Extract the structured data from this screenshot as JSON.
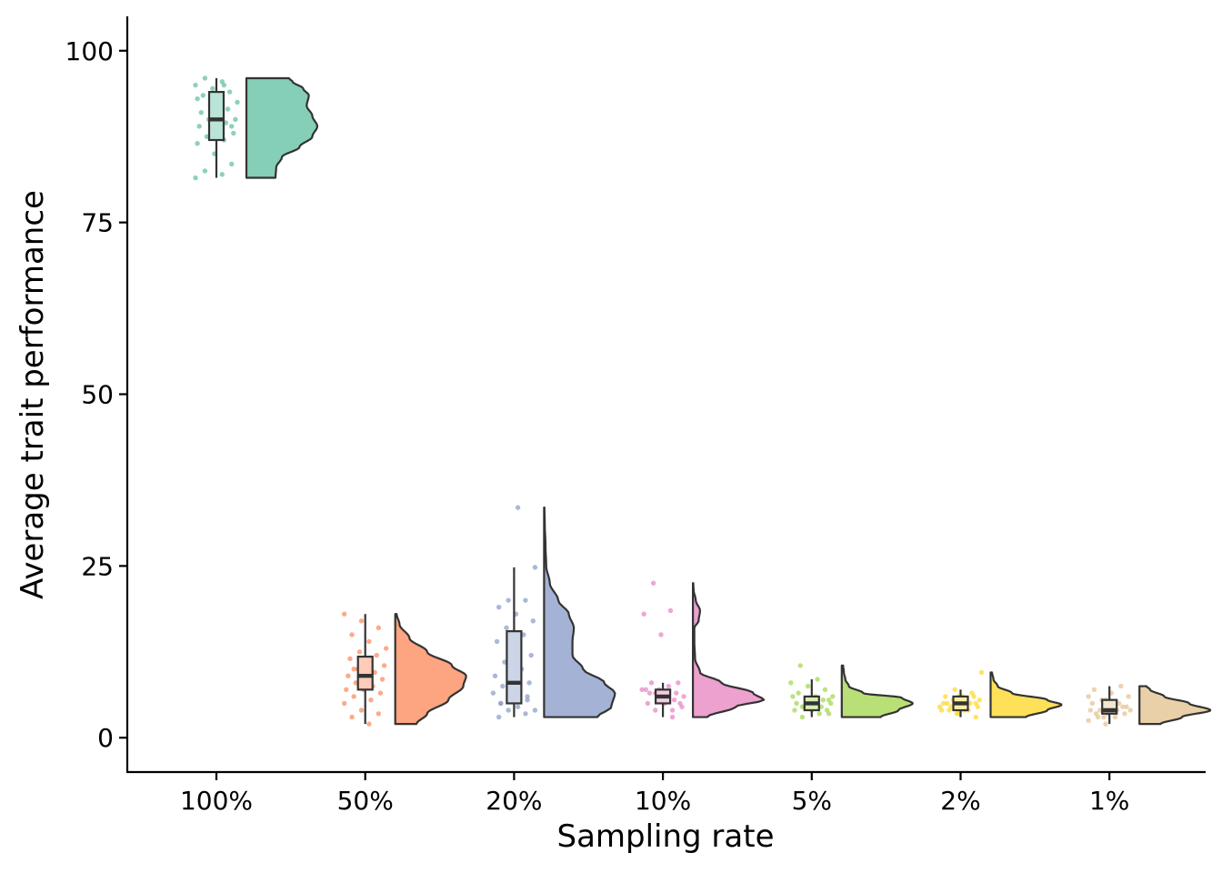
{
  "chart_data": {
    "type": "raincloud",
    "title": "",
    "xlabel": "Sampling rate",
    "ylabel": "Average trait performance",
    "ylim": [
      -5,
      105
    ],
    "y_ticks": [
      0,
      25,
      50,
      75,
      100
    ],
    "y_tick_labels": [
      "0",
      "25",
      "50",
      "75",
      "100"
    ],
    "grid": false,
    "legend": "none",
    "categories": [
      "100%",
      "50%",
      "20%",
      "10%",
      "5%",
      "2%",
      "1%"
    ],
    "colors": [
      "#66c2a5",
      "#fc8d62",
      "#8da0cb",
      "#e78ac3",
      "#a6d854",
      "#ffd92f",
      "#e5c494"
    ],
    "box_stats": [
      {
        "min": 81.5,
        "q1": 87.0,
        "median": 90.0,
        "q3": 94.0,
        "max": 96.0
      },
      {
        "min": 2.0,
        "q1": 7.0,
        "median": 9.0,
        "q3": 11.8,
        "max": 18.0
      },
      {
        "min": 3.0,
        "q1": 5.0,
        "median": 8.0,
        "q3": 15.5,
        "max": 24.8
      },
      {
        "min": 3.0,
        "q1": 5.0,
        "median": 6.0,
        "q3": 7.0,
        "max": 8.0
      },
      {
        "min": 3.0,
        "q1": 4.0,
        "median": 5.0,
        "q3": 6.0,
        "max": 8.5
      },
      {
        "min": 3.0,
        "q1": 4.0,
        "median": 5.0,
        "q3": 6.0,
        "max": 7.0
      },
      {
        "min": 2.0,
        "q1": 3.5,
        "median": 4.0,
        "q3": 5.5,
        "max": 7.5
      }
    ],
    "density": [
      {
        "range": [
          81.5,
          96.0
        ],
        "profile": [
          [
            81.5,
            0.41
          ],
          [
            83.0,
            0.42
          ],
          [
            84.5,
            0.5
          ],
          [
            86.0,
            0.75
          ],
          [
            87.5,
            0.93
          ],
          [
            89.0,
            1.0
          ],
          [
            90.5,
            0.93
          ],
          [
            92.0,
            0.85
          ],
          [
            93.5,
            0.88
          ],
          [
            94.5,
            0.8
          ],
          [
            95.5,
            0.65
          ],
          [
            96.0,
            0.6
          ]
        ]
      },
      {
        "range": [
          2.0,
          18.0
        ],
        "profile": [
          [
            2.0,
            0.3
          ],
          [
            3.5,
            0.45
          ],
          [
            5.5,
            0.75
          ],
          [
            7.5,
            0.96
          ],
          [
            9.0,
            1.0
          ],
          [
            10.5,
            0.8
          ],
          [
            12.5,
            0.45
          ],
          [
            14.5,
            0.2
          ],
          [
            16.5,
            0.06
          ],
          [
            18.0,
            0.02
          ]
        ]
      },
      {
        "range": [
          3.0,
          33.5
        ],
        "profile": [
          [
            3.0,
            0.75
          ],
          [
            4.5,
            0.95
          ],
          [
            6.5,
            1.0
          ],
          [
            8.0,
            0.85
          ],
          [
            10.0,
            0.55
          ],
          [
            12.0,
            0.4
          ],
          [
            14.0,
            0.4
          ],
          [
            16.0,
            0.42
          ],
          [
            18.0,
            0.35
          ],
          [
            20.0,
            0.2
          ],
          [
            22.5,
            0.08
          ],
          [
            25.0,
            0.03
          ],
          [
            28.0,
            0.02
          ],
          [
            31.0,
            0.01
          ],
          [
            33.5,
            0.005
          ]
        ]
      },
      {
        "range": [
          3.0,
          22.5
        ],
        "profile": [
          [
            3.0,
            0.2
          ],
          [
            4.5,
            0.6
          ],
          [
            5.5,
            1.0
          ],
          [
            6.5,
            0.85
          ],
          [
            8.0,
            0.4
          ],
          [
            9.5,
            0.1
          ],
          [
            11.5,
            0.03
          ],
          [
            14.0,
            0.02
          ],
          [
            16.0,
            0.02
          ],
          [
            17.0,
            0.08
          ],
          [
            18.5,
            0.1
          ],
          [
            20.0,
            0.04
          ],
          [
            21.5,
            0.01
          ],
          [
            22.5,
            0.005
          ]
        ]
      },
      {
        "range": [
          3.0,
          10.5
        ],
        "profile": [
          [
            3.0,
            0.55
          ],
          [
            4.0,
            0.8
          ],
          [
            5.0,
            1.0
          ],
          [
            5.8,
            0.85
          ],
          [
            6.5,
            0.3
          ],
          [
            7.5,
            0.1
          ],
          [
            8.5,
            0.05
          ],
          [
            9.5,
            0.03
          ],
          [
            10.5,
            0.02
          ]
        ]
      },
      {
        "range": [
          3.0,
          9.5
        ],
        "profile": [
          [
            3.0,
            0.5
          ],
          [
            4.0,
            0.8
          ],
          [
            4.8,
            1.0
          ],
          [
            5.5,
            0.8
          ],
          [
            6.5,
            0.3
          ],
          [
            7.5,
            0.1
          ],
          [
            8.5,
            0.04
          ],
          [
            9.5,
            0.02
          ]
        ]
      },
      {
        "range": [
          2.0,
          7.5
        ],
        "profile": [
          [
            2.0,
            0.3
          ],
          [
            3.0,
            0.6
          ],
          [
            4.0,
            1.0
          ],
          [
            5.0,
            0.7
          ],
          [
            6.0,
            0.35
          ],
          [
            7.0,
            0.15
          ],
          [
            7.5,
            0.1
          ]
        ]
      }
    ],
    "points": [
      [
        81.5,
        82.0,
        82.5,
        83.5,
        85.0,
        86.5,
        87.0,
        87.5,
        88.0,
        88.5,
        89.0,
        89.5,
        90.0,
        90.0,
        90.5,
        91.0,
        91.5,
        92.0,
        92.5,
        93.0,
        93.5,
        94.0,
        94.5,
        95.0,
        95.5,
        96.0,
        89.0,
        91.0,
        93.0,
        95.0
      ],
      [
        2.0,
        3.0,
        3.5,
        4.0,
        5.0,
        5.5,
        6.0,
        6.5,
        7.0,
        7.0,
        7.5,
        8.0,
        8.5,
        9.0,
        9.0,
        9.5,
        10.0,
        10.5,
        11.0,
        11.5,
        12.0,
        12.5,
        13.0,
        14.0,
        15.0,
        16.0,
        17.0,
        18.0,
        8.0,
        10.0
      ],
      [
        3.0,
        3.5,
        4.0,
        4.0,
        4.5,
        5.0,
        5.5,
        6.0,
        6.5,
        7.0,
        7.5,
        8.0,
        8.5,
        9.0,
        10.0,
        11.0,
        12.0,
        13.0,
        14.0,
        15.0,
        16.0,
        17.0,
        18.0,
        19.0,
        20.0,
        20.0,
        24.8,
        33.5,
        5.0,
        6.0
      ],
      [
        3.0,
        4.0,
        4.5,
        5.0,
        5.0,
        5.5,
        5.5,
        6.0,
        6.0,
        6.5,
        6.5,
        7.0,
        7.0,
        7.5,
        8.0,
        8.0,
        15.0,
        18.0,
        18.5,
        22.5,
        5.0,
        6.0,
        7.0,
        4.0,
        6.5
      ],
      [
        3.0,
        3.5,
        4.0,
        4.0,
        4.5,
        4.5,
        5.0,
        5.0,
        5.0,
        5.5,
        5.5,
        6.0,
        6.0,
        6.5,
        7.0,
        7.5,
        8.0,
        8.5,
        10.5,
        4.0,
        5.0,
        6.0,
        3.5,
        4.5,
        5.5
      ],
      [
        3.0,
        3.5,
        4.0,
        4.0,
        4.5,
        4.5,
        5.0,
        5.0,
        5.0,
        5.5,
        5.5,
        6.0,
        6.0,
        6.5,
        7.0,
        9.5,
        4.0,
        5.0,
        6.0,
        3.5,
        4.5,
        5.5,
        4.0,
        5.0,
        6.0
      ],
      [
        2.0,
        2.5,
        3.0,
        3.0,
        3.5,
        3.5,
        4.0,
        4.0,
        4.0,
        4.5,
        4.5,
        5.0,
        5.0,
        5.5,
        6.0,
        6.5,
        7.0,
        7.5,
        3.0,
        4.0,
        5.0,
        3.5,
        4.5,
        5.5,
        6.0
      ]
    ]
  }
}
